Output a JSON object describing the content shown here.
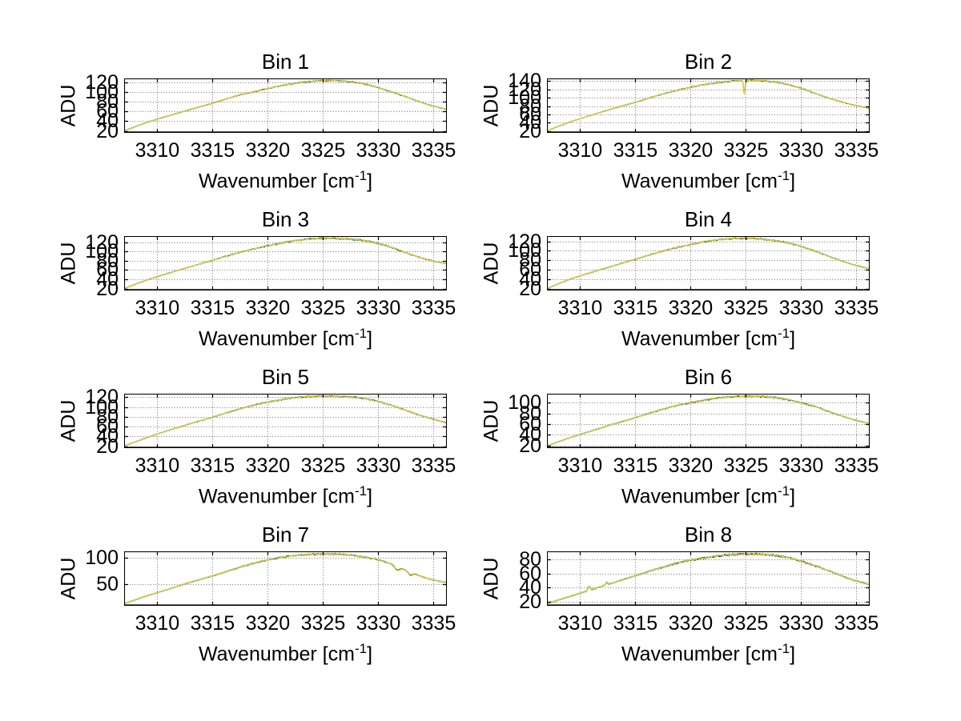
{
  "figure": {
    "background": "#ffffff",
    "text_color": "#000000",
    "axis_color": "#000000",
    "grid_color": "#6e6e6e",
    "grid_style": "dotted",
    "ylabel": "ADU",
    "xlabel_pre": "Wavenumber [cm",
    "xlabel_sup": "-1",
    "xlabel_post": "]",
    "traces": [
      {
        "name": "trace-blue",
        "color": "#4d79cc",
        "width": 1.1,
        "offset": -0.45
      },
      {
        "name": "trace-cyan",
        "color": "#4fc4cb",
        "width": 1.1,
        "offset": 0.5
      },
      {
        "name": "trace-green",
        "color": "#3fae4a",
        "width": 1.1,
        "offset": 0.25
      },
      {
        "name": "trace-black",
        "color": "#161616",
        "width": 1.0,
        "offset": 0
      },
      {
        "name": "trace-yellow",
        "color": "#e0cc3e",
        "width": 1.4,
        "offset": 0
      }
    ]
  },
  "chart_data": [
    {
      "type": "line",
      "title": "Bin 1",
      "xlabel": "Wavenumber [cm⁻¹]",
      "ylabel": "ADU",
      "xlim": [
        3307,
        3336.2
      ],
      "ylim": [
        16,
        128
      ],
      "xticks": [
        3310,
        3315,
        3320,
        3325,
        3330,
        3335
      ],
      "yticks": [
        20,
        40,
        60,
        80,
        100,
        120
      ],
      "grid": true,
      "noise_amp": 1.6,
      "seed": 3,
      "features": [],
      "anchors": [
        [
          3307,
          20
        ],
        [
          3309,
          37
        ],
        [
          3311,
          51
        ],
        [
          3313,
          64
        ],
        [
          3315,
          77
        ],
        [
          3317,
          91
        ],
        [
          3319,
          102
        ],
        [
          3321,
          112
        ],
        [
          3322.5,
          118
        ],
        [
          3324,
          122
        ],
        [
          3325.5,
          123.5
        ],
        [
          3327,
          122
        ],
        [
          3328.5,
          118
        ],
        [
          3330,
          109
        ],
        [
          3331.5,
          98
        ],
        [
          3333,
          86
        ],
        [
          3334.5,
          74
        ],
        [
          3336.3,
          64
        ]
      ]
    },
    {
      "type": "line",
      "title": "Bin 2",
      "xlabel": "Wavenumber [cm⁻¹]",
      "ylabel": "ADU",
      "xlim": [
        3307,
        3336.2
      ],
      "ylim": [
        16,
        146
      ],
      "xticks": [
        3310,
        3315,
        3320,
        3325,
        3330,
        3335
      ],
      "yticks": [
        20,
        40,
        60,
        80,
        100,
        120,
        140
      ],
      "grid": true,
      "noise_amp": 1.8,
      "seed": 5,
      "features": [
        {
          "x": 3324.85,
          "depth": 32,
          "width": 0.09
        }
      ],
      "anchors": [
        [
          3307,
          21
        ],
        [
          3309,
          41
        ],
        [
          3311,
          58
        ],
        [
          3313,
          74
        ],
        [
          3315,
          89
        ],
        [
          3317,
          105
        ],
        [
          3319,
          119
        ],
        [
          3321,
          130
        ],
        [
          3322.5,
          136
        ],
        [
          3324,
          140
        ],
        [
          3325.5,
          141
        ],
        [
          3327,
          139
        ],
        [
          3328.5,
          133
        ],
        [
          3330,
          122
        ],
        [
          3331.5,
          108
        ],
        [
          3333,
          95
        ],
        [
          3334.5,
          84
        ],
        [
          3336.3,
          74
        ]
      ]
    },
    {
      "type": "line",
      "title": "Bin 3",
      "xlabel": "Wavenumber [cm⁻¹]",
      "ylabel": "ADU",
      "xlim": [
        3307,
        3336.2
      ],
      "ylim": [
        16,
        133
      ],
      "xticks": [
        3310,
        3315,
        3320,
        3325,
        3330,
        3335
      ],
      "yticks": [
        20,
        40,
        60,
        80,
        100,
        120
      ],
      "grid": true,
      "noise_amp": 2.1,
      "seed": 7,
      "features": [],
      "anchors": [
        [
          3307,
          20
        ],
        [
          3309,
          38
        ],
        [
          3311,
          53
        ],
        [
          3313,
          67
        ],
        [
          3315,
          81
        ],
        [
          3317,
          95
        ],
        [
          3319,
          107
        ],
        [
          3321,
          117
        ],
        [
          3322.5,
          123
        ],
        [
          3324,
          127
        ],
        [
          3325.5,
          128
        ],
        [
          3327,
          127
        ],
        [
          3328.5,
          124
        ],
        [
          3330,
          117
        ],
        [
          3331.5,
          106
        ],
        [
          3333,
          93
        ],
        [
          3334.5,
          82
        ],
        [
          3336.3,
          73
        ]
      ]
    },
    {
      "type": "line",
      "title": "Bin 4",
      "xlabel": "Wavenumber [cm⁻¹]",
      "ylabel": "ADU",
      "xlim": [
        3307,
        3336.2
      ],
      "ylim": [
        16,
        131
      ],
      "xticks": [
        3310,
        3315,
        3320,
        3325,
        3330,
        3335
      ],
      "yticks": [
        20,
        40,
        60,
        80,
        100,
        120
      ],
      "grid": true,
      "noise_amp": 1.8,
      "seed": 11,
      "features": [],
      "anchors": [
        [
          3307,
          20
        ],
        [
          3309,
          39
        ],
        [
          3311,
          54
        ],
        [
          3313,
          68
        ],
        [
          3315,
          82
        ],
        [
          3317,
          96
        ],
        [
          3319,
          108
        ],
        [
          3321,
          118
        ],
        [
          3322.5,
          123
        ],
        [
          3324,
          126
        ],
        [
          3325.5,
          126
        ],
        [
          3327,
          123
        ],
        [
          3328.5,
          118
        ],
        [
          3330,
          109
        ],
        [
          3331.5,
          97
        ],
        [
          3333,
          84
        ],
        [
          3334.5,
          72
        ],
        [
          3336.3,
          61
        ]
      ]
    },
    {
      "type": "line",
      "title": "Bin 5",
      "xlabel": "Wavenumber [cm⁻¹]",
      "ylabel": "ADU",
      "xlim": [
        3307,
        3336.2
      ],
      "ylim": [
        16,
        127
      ],
      "xticks": [
        3310,
        3315,
        3320,
        3325,
        3330,
        3335
      ],
      "yticks": [
        20,
        40,
        60,
        80,
        100,
        120
      ],
      "grid": true,
      "noise_amp": 1.7,
      "seed": 13,
      "features": [],
      "anchors": [
        [
          3307,
          20
        ],
        [
          3309,
          37
        ],
        [
          3311,
          52
        ],
        [
          3313,
          66
        ],
        [
          3315,
          79
        ],
        [
          3317,
          93
        ],
        [
          3319,
          105
        ],
        [
          3321,
          114
        ],
        [
          3322.5,
          119
        ],
        [
          3324,
          121.5
        ],
        [
          3325.5,
          122
        ],
        [
          3327,
          121
        ],
        [
          3328.5,
          118
        ],
        [
          3330,
          111
        ],
        [
          3331.5,
          101
        ],
        [
          3333,
          89
        ],
        [
          3334.5,
          78
        ],
        [
          3336.3,
          67
        ]
      ]
    },
    {
      "type": "line",
      "title": "Bin 6",
      "xlabel": "Wavenumber [cm⁻¹]",
      "ylabel": "ADU",
      "xlim": [
        3307,
        3336.2
      ],
      "ylim": [
        15,
        117
      ],
      "xticks": [
        3310,
        3315,
        3320,
        3325,
        3330,
        3335
      ],
      "yticks": [
        20,
        40,
        60,
        80,
        100
      ],
      "grid": true,
      "noise_amp": 1.7,
      "seed": 17,
      "features": [],
      "anchors": [
        [
          3307,
          19
        ],
        [
          3309,
          34
        ],
        [
          3311,
          47
        ],
        [
          3313,
          60
        ],
        [
          3315,
          72
        ],
        [
          3317,
          85
        ],
        [
          3319,
          96
        ],
        [
          3321,
          104
        ],
        [
          3322.5,
          109
        ],
        [
          3324,
          111.5
        ],
        [
          3325.5,
          112
        ],
        [
          3327,
          111
        ],
        [
          3328.5,
          107
        ],
        [
          3330,
          100
        ],
        [
          3331.5,
          91
        ],
        [
          3333,
          80
        ],
        [
          3334.5,
          70
        ],
        [
          3336.3,
          60
        ]
      ]
    },
    {
      "type": "line",
      "title": "Bin 7",
      "xlabel": "Wavenumber [cm⁻¹]",
      "ylabel": "ADU",
      "xlim": [
        3307,
        3336.2
      ],
      "ylim": [
        10,
        112
      ],
      "xticks": [
        3310,
        3315,
        3320,
        3325,
        3330,
        3335
      ],
      "yticks": [
        50,
        100
      ],
      "grid": true,
      "noise_amp": 1.6,
      "seed": 19,
      "features": [
        {
          "x": 3331.7,
          "depth": 8,
          "width": 0.3
        },
        {
          "x": 3332.9,
          "depth": 6,
          "width": 0.25
        }
      ],
      "anchors": [
        [
          3307,
          14
        ],
        [
          3309,
          28
        ],
        [
          3311,
          41
        ],
        [
          3313,
          54
        ],
        [
          3315,
          66
        ],
        [
          3317,
          79
        ],
        [
          3319,
          91
        ],
        [
          3321,
          100
        ],
        [
          3322.5,
          104
        ],
        [
          3324,
          106.5
        ],
        [
          3325.5,
          107
        ],
        [
          3327,
          106
        ],
        [
          3328.5,
          102
        ],
        [
          3330,
          96
        ],
        [
          3331.5,
          86
        ],
        [
          3333,
          72
        ],
        [
          3334.5,
          61
        ],
        [
          3336.3,
          53
        ]
      ]
    },
    {
      "type": "line",
      "title": "Bin 8",
      "xlabel": "Wavenumber [cm⁻¹]",
      "ylabel": "ADU",
      "xlim": [
        3307,
        3336.2
      ],
      "ylim": [
        14,
        92
      ],
      "xticks": [
        3310,
        3315,
        3320,
        3325,
        3330,
        3335
      ],
      "yticks": [
        20,
        40,
        60,
        80
      ],
      "grid": true,
      "noise_amp": 1.7,
      "seed": 23,
      "features": [
        {
          "x": 3310.8,
          "depth": -6,
          "width": 0.15
        },
        {
          "x": 3312.4,
          "depth": -4,
          "width": 0.12
        }
      ],
      "anchors": [
        [
          3307,
          17
        ],
        [
          3309,
          27
        ],
        [
          3311,
          37
        ],
        [
          3313,
          47
        ],
        [
          3315,
          57
        ],
        [
          3317,
          67
        ],
        [
          3319,
          76
        ],
        [
          3321,
          82
        ],
        [
          3322.5,
          85.5
        ],
        [
          3324,
          87.5
        ],
        [
          3325.5,
          88
        ],
        [
          3327,
          87
        ],
        [
          3328.5,
          84
        ],
        [
          3330,
          78
        ],
        [
          3331.5,
          70
        ],
        [
          3333,
          61
        ],
        [
          3334.5,
          52
        ],
        [
          3336.3,
          44
        ]
      ]
    }
  ]
}
